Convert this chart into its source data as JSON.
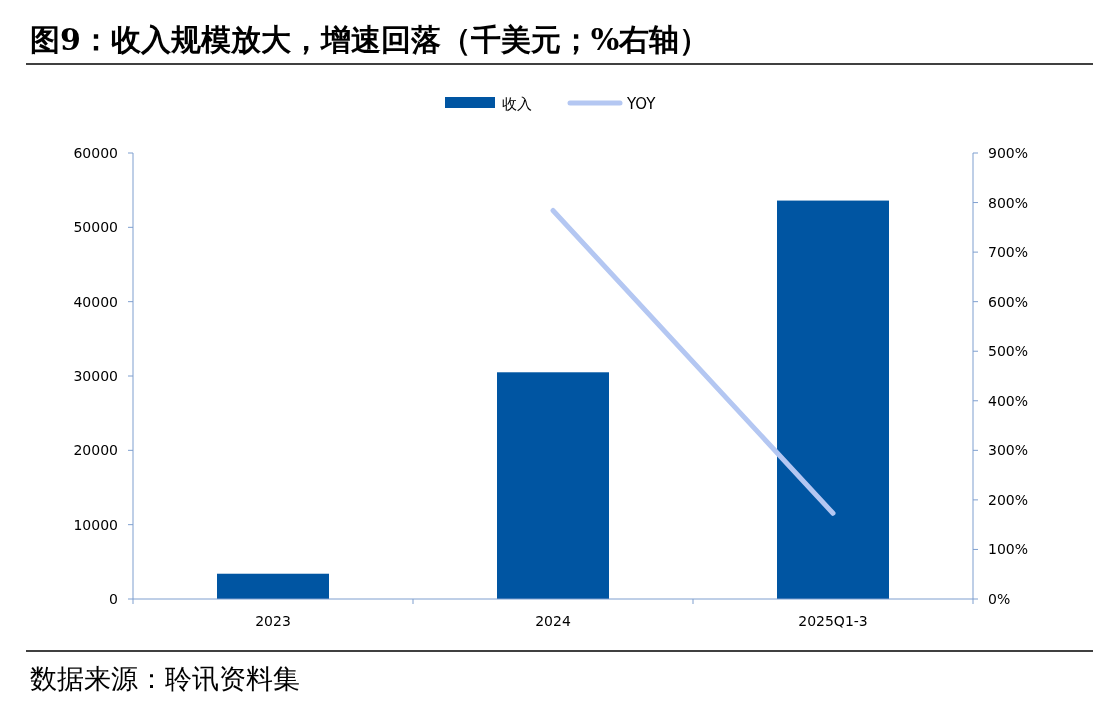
{
  "chart_data": {
    "type": "bar",
    "title": "图9：收入规模放大，增速回落（千美元；%右轴）",
    "categories": [
      "2023",
      "2024",
      "2025Q1-3"
    ],
    "series": [
      {
        "name": "收入",
        "color": "#0055a2",
        "values": [
          3400,
          30500,
          53600
        ]
      },
      {
        "name": "YOY",
        "type": "line",
        "axis": "y2",
        "color": "#b4c7f2",
        "values": [
          null,
          784,
          173
        ]
      }
    ],
    "ylim": [
      0,
      60000
    ],
    "yticks": [
      0,
      10000,
      20000,
      30000,
      40000,
      50000,
      60000
    ],
    "y2lim": [
      0,
      900
    ],
    "y2ticks": [
      {
        "value": 0,
        "label": "0%"
      },
      {
        "value": 100,
        "label": "100%"
      },
      {
        "value": 200,
        "label": "200%"
      },
      {
        "value": 300,
        "label": "300%"
      },
      {
        "value": 400,
        "label": "400%"
      },
      {
        "value": 500,
        "label": "500%"
      },
      {
        "value": 600,
        "label": "600%"
      },
      {
        "value": 700,
        "label": "700%"
      },
      {
        "value": 800,
        "label": "800%"
      },
      {
        "value": 900,
        "label": "900%"
      }
    ],
    "legend": "top",
    "grid": false,
    "marker": "none",
    "annotations": [
      "数据来源：聆讯资料集"
    ]
  }
}
